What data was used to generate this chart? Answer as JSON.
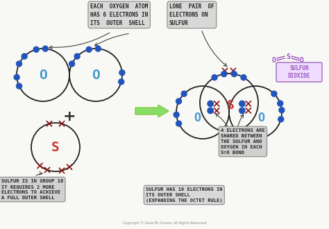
{
  "bg_color": "#f8f8f4",
  "dot_color": "#2255bb",
  "cross_color": "#881111",
  "O_color": "#4499cc",
  "S_color": "#cc3333",
  "edge_color": "#222222",
  "green_arrow": "#88dd66",
  "arrow_color": "#444444",
  "box_bg_light": "#d8d8d8",
  "box_bg_gray": "#cccccc",
  "sulfur_dioxide_color": "#9955bb",
  "sd_box_color": "#ddbbff",
  "title": "EACH  OXYGEN  ATOM\nHAS 6 ELECTRONS IN\nITS  OUTER  SHELL",
  "label_lone_pair": "LONE  PAIR  OF\nELECTRONS ON\nSULFUR",
  "label_sulfur_group": "SULFUR IS IN GROUP 16\nIT REQUIRES 2 MORE\nELECTRONS TO ACHIEVE\nA FULL OUTER SHELL",
  "label_4electrons": "4 ELECTRONS ARE\nSHARED BETWEEN\nTHE SULFUR AND\nOXYGEN IN EACH\nS=O BOND",
  "label_10electrons": "SULFUR HAS 10 ELECTRONS IN\nITS OUTER SHELL\n(EXPANDING THE OCTET RULE)",
  "label_sulfur_dioxide": "SULFUR\nDIOXIDE",
  "copyright": "Copyright © Save My Exams. All Rights Reserved"
}
